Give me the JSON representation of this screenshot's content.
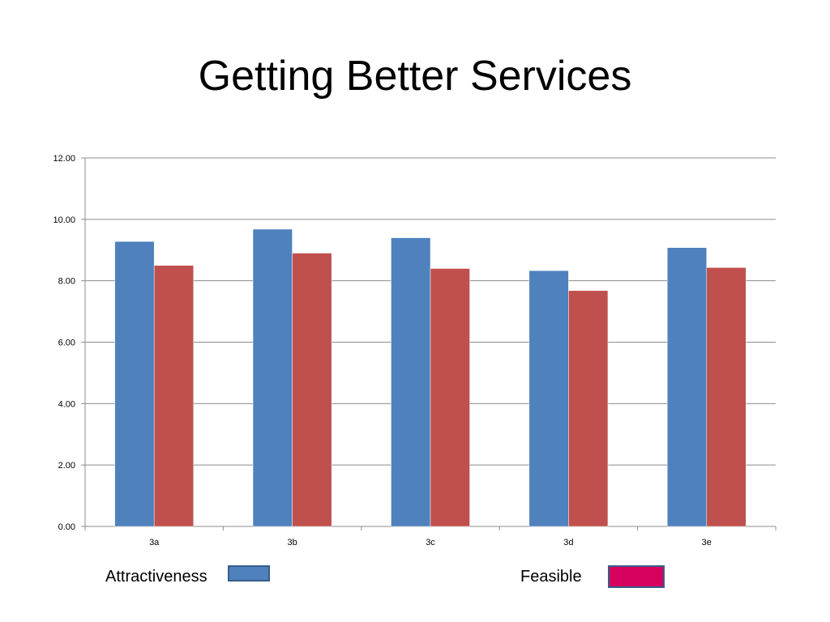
{
  "slide": {
    "title": "Getting Better Services"
  },
  "legend": {
    "items": [
      {
        "label": "Attractiveness",
        "color": "#4f81bd"
      },
      {
        "label": "Feasible",
        "color": "#d6005e"
      }
    ]
  },
  "chart_data": {
    "type": "bar",
    "title": "Getting Better Services",
    "xlabel": "",
    "ylabel": "",
    "categories": [
      "3a",
      "3b",
      "3c",
      "3d",
      "3e"
    ],
    "series": [
      {
        "name": "Attractiveness",
        "color": "#4f81bd",
        "values": [
          9.28,
          9.68,
          9.4,
          8.33,
          9.08
        ]
      },
      {
        "name": "Feasible",
        "color": "#c0504d",
        "values": [
          8.5,
          8.9,
          8.4,
          7.68,
          8.43
        ]
      }
    ],
    "ylim": [
      0,
      12
    ],
    "yticks": [
      "0.00",
      "2.00",
      "4.00",
      "6.00",
      "8.00",
      "10.00",
      "12.00"
    ],
    "ytick_values": [
      0,
      2,
      4,
      6,
      8,
      10,
      12
    ],
    "grid": true,
    "legend_position": "bottom"
  }
}
